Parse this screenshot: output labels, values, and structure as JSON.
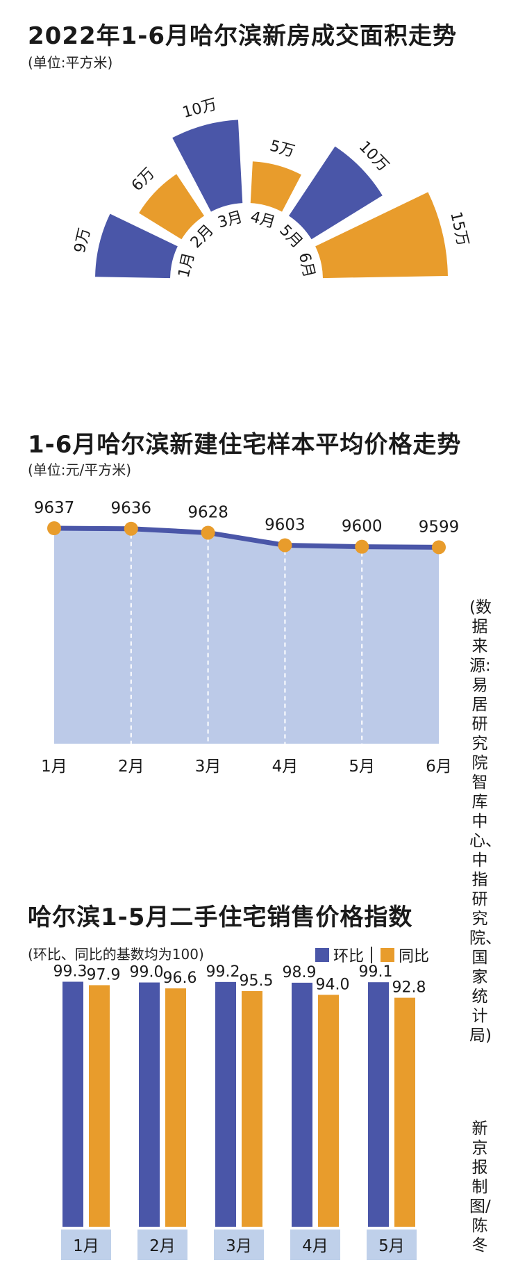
{
  "colors": {
    "blue": "#4a56a8",
    "orange": "#e89c2c",
    "area": "#bccae8",
    "line": "#4a56a8",
    "dot": "#e89c2c",
    "label_bg": "#bfd0ea"
  },
  "chart_data": [
    {
      "type": "bar",
      "title": "2022年1-6月哈尔滨新房成交面积走势",
      "subtitle": "(单位:平方米)",
      "categories": [
        "1月",
        "2月",
        "3月",
        "4月",
        "5月",
        "6月"
      ],
      "values": [
        9,
        6,
        10,
        5,
        10,
        15
      ],
      "value_labels": [
        "9万",
        "6万",
        "10万",
        "5万",
        "10万",
        "15万"
      ]
    },
    {
      "type": "area",
      "title": "1-6月哈尔滨新建住宅样本平均价格走势",
      "subtitle": "(单位:元/平方米)",
      "categories": [
        "1月",
        "2月",
        "3月",
        "4月",
        "5月",
        "6月"
      ],
      "values": [
        9637,
        9636,
        9628,
        9603,
        9600,
        9599
      ]
    },
    {
      "type": "bar",
      "title": "哈尔滨1-5月二手住宅销售价格指数",
      "subtitle": "(环比、同比的基数均为100)",
      "categories": [
        "1月",
        "2月",
        "3月",
        "4月",
        "5月"
      ],
      "series": [
        {
          "name": "环比",
          "values": [
            99.3,
            99.0,
            99.2,
            98.9,
            99.1
          ]
        },
        {
          "name": "同比",
          "values": [
            97.9,
            96.6,
            95.5,
            94.0,
            92.8
          ]
        }
      ]
    }
  ],
  "source_note": "(数据来源:易居研究院智库中心、中指研究院、国家统计局)",
  "credit": "新京报制图/陈冬"
}
